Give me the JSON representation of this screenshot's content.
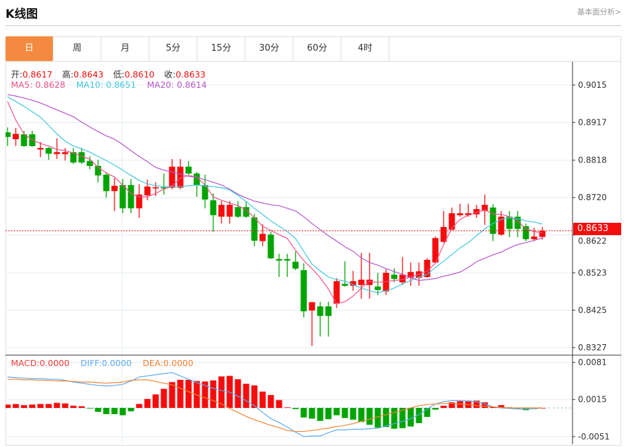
{
  "header": {
    "title": "K线图",
    "link": "基本面分析>"
  },
  "tabs": [
    {
      "label": "日",
      "active": true
    },
    {
      "label": "周"
    },
    {
      "label": "月"
    },
    {
      "label": "5分"
    },
    {
      "label": "15分"
    },
    {
      "label": "30分"
    },
    {
      "label": "60分"
    },
    {
      "label": "4时"
    }
  ],
  "ohlc": {
    "open_label": "开:",
    "open": "0.8617",
    "high_label": "高:",
    "high": "0.8643",
    "low_label": "低:",
    "low": "0.8610",
    "close_label": "收:",
    "close": "0.8633"
  },
  "ma": {
    "ma5_label": "MA5: ",
    "ma5": "0.8628",
    "ma10_label": "MA10: ",
    "ma10": "0.8651",
    "ma20_label": "MA20: ",
    "ma20": "0.8614"
  },
  "macd_info": {
    "macd_label": "MACD:",
    "macd": "0.0000",
    "diff_label": "DIFF:",
    "diff": "0.0000",
    "dea_label": "DEA:",
    "dea": "0.0000"
  },
  "current_price": "0.8633",
  "colors": {
    "up": "#f50d0d",
    "down": "#00a400",
    "ma5": "#f0508a",
    "ma10": "#3fc6de",
    "ma20": "#b455c8",
    "diff": "#5aaaf0",
    "dea": "#f58230",
    "accent": "#f38a3f"
  },
  "chart_data": {
    "type": "candlestick",
    "price_axis": {
      "ticks": [
        "0.9015",
        "0.8917",
        "0.8818",
        "0.8720",
        "0.8622",
        "0.8523",
        "0.8425",
        "0.8327"
      ],
      "range": [
        0.8327,
        0.9015
      ]
    },
    "macd_axis": {
      "ticks": [
        "0.0081",
        "0.0015",
        "-0.0051"
      ],
      "range": [
        -0.0051,
        0.0081
      ]
    },
    "candles": [
      [
        0.8891,
        0.8904,
        0.8855,
        0.8879
      ],
      [
        0.8873,
        0.8902,
        0.8855,
        0.8887
      ],
      [
        0.8886,
        0.8895,
        0.8853,
        0.8855
      ],
      [
        0.8886,
        0.8895,
        0.8853,
        0.8855
      ],
      [
        0.8846,
        0.8866,
        0.8826,
        0.885
      ],
      [
        0.885,
        0.8852,
        0.8819,
        0.8835
      ],
      [
        0.8834,
        0.8875,
        0.8821,
        0.8839
      ],
      [
        0.8834,
        0.885,
        0.8817,
        0.8839
      ],
      [
        0.8839,
        0.885,
        0.8808,
        0.8812
      ],
      [
        0.8839,
        0.885,
        0.8808,
        0.8812
      ],
      [
        0.8816,
        0.8828,
        0.8794,
        0.8803
      ],
      [
        0.8803,
        0.8819,
        0.876,
        0.8778
      ],
      [
        0.878,
        0.8785,
        0.872,
        0.8737
      ],
      [
        0.8737,
        0.8771,
        0.8685,
        0.8751
      ],
      [
        0.8753,
        0.8769,
        0.8679,
        0.8692
      ],
      [
        0.8753,
        0.8769,
        0.8679,
        0.8692
      ],
      [
        0.8692,
        0.8755,
        0.8667,
        0.8728
      ],
      [
        0.8726,
        0.8767,
        0.8713,
        0.8749
      ],
      [
        0.8744,
        0.876,
        0.8724,
        0.8747
      ],
      [
        0.8747,
        0.8783,
        0.8728,
        0.8744
      ],
      [
        0.8746,
        0.8821,
        0.8742,
        0.8801
      ],
      [
        0.8746,
        0.8821,
        0.8742,
        0.8801
      ],
      [
        0.8801,
        0.8816,
        0.878,
        0.8783
      ],
      [
        0.8783,
        0.8787,
        0.8722,
        0.8753
      ],
      [
        0.8753,
        0.878,
        0.8692,
        0.8715
      ],
      [
        0.8713,
        0.8731,
        0.8631,
        0.8674
      ],
      [
        0.867,
        0.8711,
        0.8652,
        0.8701
      ],
      [
        0.867,
        0.8711,
        0.8652,
        0.8701
      ],
      [
        0.8695,
        0.8711,
        0.8667,
        0.867
      ],
      [
        0.8695,
        0.8711,
        0.8667,
        0.867
      ],
      [
        0.8668,
        0.8677,
        0.8593,
        0.8607
      ],
      [
        0.8606,
        0.865,
        0.8593,
        0.8625
      ],
      [
        0.8623,
        0.8631,
        0.8559,
        0.8561
      ],
      [
        0.8559,
        0.8573,
        0.8512,
        0.8555
      ],
      [
        0.8559,
        0.8573,
        0.8512,
        0.8555
      ],
      [
        0.8552,
        0.8579,
        0.853,
        0.8534
      ],
      [
        0.853,
        0.8548,
        0.8406,
        0.8422
      ],
      [
        0.8424,
        0.8447,
        0.8331,
        0.8446
      ],
      [
        0.8435,
        0.8447,
        0.8356,
        0.841
      ],
      [
        0.8435,
        0.8447,
        0.8356,
        0.841
      ],
      [
        0.8442,
        0.8509,
        0.8431,
        0.8501
      ],
      [
        0.8494,
        0.8553,
        0.8487,
        0.8489
      ],
      [
        0.8489,
        0.8528,
        0.8476,
        0.8501
      ],
      [
        0.8491,
        0.8575,
        0.8455,
        0.8505
      ],
      [
        0.8491,
        0.8575,
        0.8455,
        0.8505
      ],
      [
        0.8487,
        0.8523,
        0.8465,
        0.8478
      ],
      [
        0.8474,
        0.8532,
        0.8465,
        0.8523
      ],
      [
        0.8518,
        0.8535,
        0.8498,
        0.8507
      ],
      [
        0.8498,
        0.8564,
        0.8491,
        0.8518
      ],
      [
        0.851,
        0.855,
        0.8489,
        0.8525
      ],
      [
        0.851,
        0.855,
        0.8489,
        0.8527
      ],
      [
        0.8512,
        0.8561,
        0.851,
        0.8557
      ],
      [
        0.855,
        0.8618,
        0.8548,
        0.8614
      ],
      [
        0.8604,
        0.8685,
        0.8602,
        0.8643
      ],
      [
        0.8636,
        0.8694,
        0.8634,
        0.8679
      ],
      [
        0.8674,
        0.8704,
        0.867,
        0.8679
      ],
      [
        0.8674,
        0.8704,
        0.867,
        0.8679
      ],
      [
        0.8676,
        0.8701,
        0.8667,
        0.869
      ],
      [
        0.8685,
        0.8728,
        0.8649,
        0.8701
      ],
      [
        0.8694,
        0.8703,
        0.8606,
        0.8625
      ],
      [
        0.8623,
        0.8685,
        0.862,
        0.867
      ],
      [
        0.867,
        0.8685,
        0.8616,
        0.8638
      ],
      [
        0.867,
        0.8685,
        0.8616,
        0.8638
      ],
      [
        0.8645,
        0.8652,
        0.8606,
        0.8611
      ],
      [
        0.8611,
        0.8641,
        0.8606,
        0.8618
      ],
      [
        0.8617,
        0.8643,
        0.861,
        0.8633
      ]
    ],
    "ma5": [
      0.8972,
      0.8923,
      0.8887,
      0.8871,
      0.8862,
      0.8855,
      0.8846,
      0.8843,
      0.8837,
      0.8828,
      0.8821,
      0.8799,
      0.8785,
      0.8774,
      0.8753,
      0.8731,
      0.8722,
      0.8722,
      0.8731,
      0.8742,
      0.8751,
      0.8771,
      0.8778,
      0.8774,
      0.8753,
      0.8722,
      0.8713,
      0.8706,
      0.8699,
      0.8688,
      0.8667,
      0.8645,
      0.8634,
      0.8623,
      0.8613,
      0.8582,
      0.8555,
      0.8534,
      0.851,
      0.848,
      0.8442,
      0.8447,
      0.8462,
      0.8483,
      0.8501,
      0.8498,
      0.85,
      0.8503,
      0.8505,
      0.8512,
      0.8519,
      0.8527,
      0.8548,
      0.8597,
      0.864,
      0.8663,
      0.8674,
      0.8681,
      0.8688,
      0.8677,
      0.8676,
      0.867,
      0.8659,
      0.8638,
      0.8631,
      0.8628
    ],
    "ma10": [
      0.8984,
      0.8972,
      0.8959,
      0.8945,
      0.8931,
      0.8909,
      0.8887,
      0.8868,
      0.8855,
      0.8848,
      0.8839,
      0.8828,
      0.8817,
      0.8805,
      0.8792,
      0.8778,
      0.8765,
      0.8756,
      0.8751,
      0.8749,
      0.8749,
      0.8749,
      0.8751,
      0.8753,
      0.8751,
      0.8749,
      0.8746,
      0.874,
      0.8726,
      0.871,
      0.8692,
      0.8676,
      0.8659,
      0.8645,
      0.8631,
      0.8613,
      0.8579,
      0.8546,
      0.8528,
      0.8512,
      0.8505,
      0.8501,
      0.8492,
      0.8483,
      0.8476,
      0.8471,
      0.8476,
      0.8483,
      0.8494,
      0.8503,
      0.8512,
      0.8519,
      0.8537,
      0.8553,
      0.8571,
      0.8588,
      0.8602,
      0.862,
      0.8638,
      0.8652,
      0.8663,
      0.8667,
      0.8665,
      0.8659,
      0.8656,
      0.8651
    ],
    "ma20": [
      0.899,
      0.8986,
      0.8981,
      0.8975,
      0.8968,
      0.8959,
      0.895,
      0.8941,
      0.8932,
      0.8918,
      0.8905,
      0.8893,
      0.8882,
      0.8873,
      0.8859,
      0.8843,
      0.8828,
      0.8814,
      0.8799,
      0.8792,
      0.8787,
      0.8782,
      0.8776,
      0.8773,
      0.8767,
      0.876,
      0.8753,
      0.8742,
      0.8729,
      0.8719,
      0.8711,
      0.8706,
      0.8701,
      0.8699,
      0.8692,
      0.8685,
      0.867,
      0.8652,
      0.8636,
      0.862,
      0.8606,
      0.8591,
      0.8579,
      0.8562,
      0.855,
      0.8543,
      0.8534,
      0.8526,
      0.8519,
      0.851,
      0.8503,
      0.8505,
      0.8508,
      0.8514,
      0.8519,
      0.8525,
      0.8537,
      0.8552,
      0.8561,
      0.857,
      0.8577,
      0.8588,
      0.8597,
      0.8602,
      0.8608,
      0.8614
    ],
    "macd_hist": [
      0.0006,
      0.0007,
      0.0005,
      0.0006,
      0.0007,
      0.0007,
      0.0009,
      0.0008,
      0.0004,
      0.0003,
      -0.0001,
      -0.0007,
      -0.0011,
      -0.0011,
      -0.0013,
      -0.0006,
      0.0007,
      0.0016,
      0.0024,
      0.0034,
      0.0046,
      0.005,
      0.005,
      0.0048,
      0.0047,
      0.0049,
      0.0056,
      0.0057,
      0.0051,
      0.0043,
      0.004,
      0.0029,
      0.0023,
      0.0014,
      0.0001,
      -0.0002,
      -0.0017,
      -0.0019,
      -0.0023,
      -0.002,
      -0.0013,
      -0.0018,
      -0.0021,
      -0.0025,
      -0.003,
      -0.0035,
      -0.0034,
      -0.0037,
      -0.0036,
      -0.0033,
      -0.0027,
      -0.0016,
      -0.0003,
      0.0004,
      0.001,
      0.0012,
      0.0013,
      0.0013,
      0.001,
      0.0002,
      0.0005,
      0.0001,
      -0.0001,
      -0.0004,
      -0.0002,
      0
    ],
    "diff": [
      0.0055,
      0.0054,
      0.0053,
      0.0052,
      0.0052,
      0.0051,
      0.0051,
      0.0049,
      0.0046,
      0.0044,
      0.0042,
      0.004,
      0.0039,
      0.004,
      0.0042,
      0.0048,
      0.0055,
      0.0057,
      0.0059,
      0.0061,
      0.0063,
      0.0057,
      0.0051,
      0.0045,
      0.004,
      0.0035,
      0.0031,
      0.0028,
      0.0021,
      0.0013,
      0.0004,
      -0.0008,
      -0.0019,
      -0.0026,
      -0.0034,
      -0.0043,
      -0.0051,
      -0.005,
      -0.005,
      -0.0044,
      -0.0039,
      -0.0039,
      -0.0038,
      -0.0038,
      -0.0037,
      -0.0036,
      -0.0032,
      -0.0028,
      -0.0024,
      -0.0019,
      -0.0012,
      -0.0002,
      0.0007,
      0.0011,
      0.0013,
      0.0013,
      0.0012,
      0.0011,
      0.0007,
      0.0002,
      0.0,
      -0.0001,
      -0.0002,
      -0.0002,
      -0.0001,
      0.0
    ],
    "dea": [
      0.0051,
      0.0051,
      0.005,
      0.005,
      0.0049,
      0.0049,
      0.0048,
      0.0048,
      0.0047,
      0.0046,
      0.0046,
      0.0045,
      0.0044,
      0.0045,
      0.0046,
      0.0049,
      0.005,
      0.005,
      0.0047,
      0.0044,
      0.0041,
      0.0035,
      0.0029,
      0.0023,
      0.0018,
      0.0013,
      0.0007,
      -0.0001,
      -0.0008,
      -0.0015,
      -0.0021,
      -0.0026,
      -0.0031,
      -0.0035,
      -0.004,
      -0.0042,
      -0.0042,
      -0.004,
      -0.0038,
      -0.0036,
      -0.0033,
      -0.0031,
      -0.0028,
      -0.0024,
      -0.002,
      -0.0016,
      -0.0012,
      -0.0008,
      -0.0004,
      0.0,
      0.0004,
      0.0006,
      0.0007,
      0.0008,
      0.0008,
      0.0007,
      0.0006,
      0.0004,
      0.0003,
      0.0002,
      0.0001,
      0.0,
      0.0,
      0.0,
      0.0,
      0.0
    ]
  }
}
